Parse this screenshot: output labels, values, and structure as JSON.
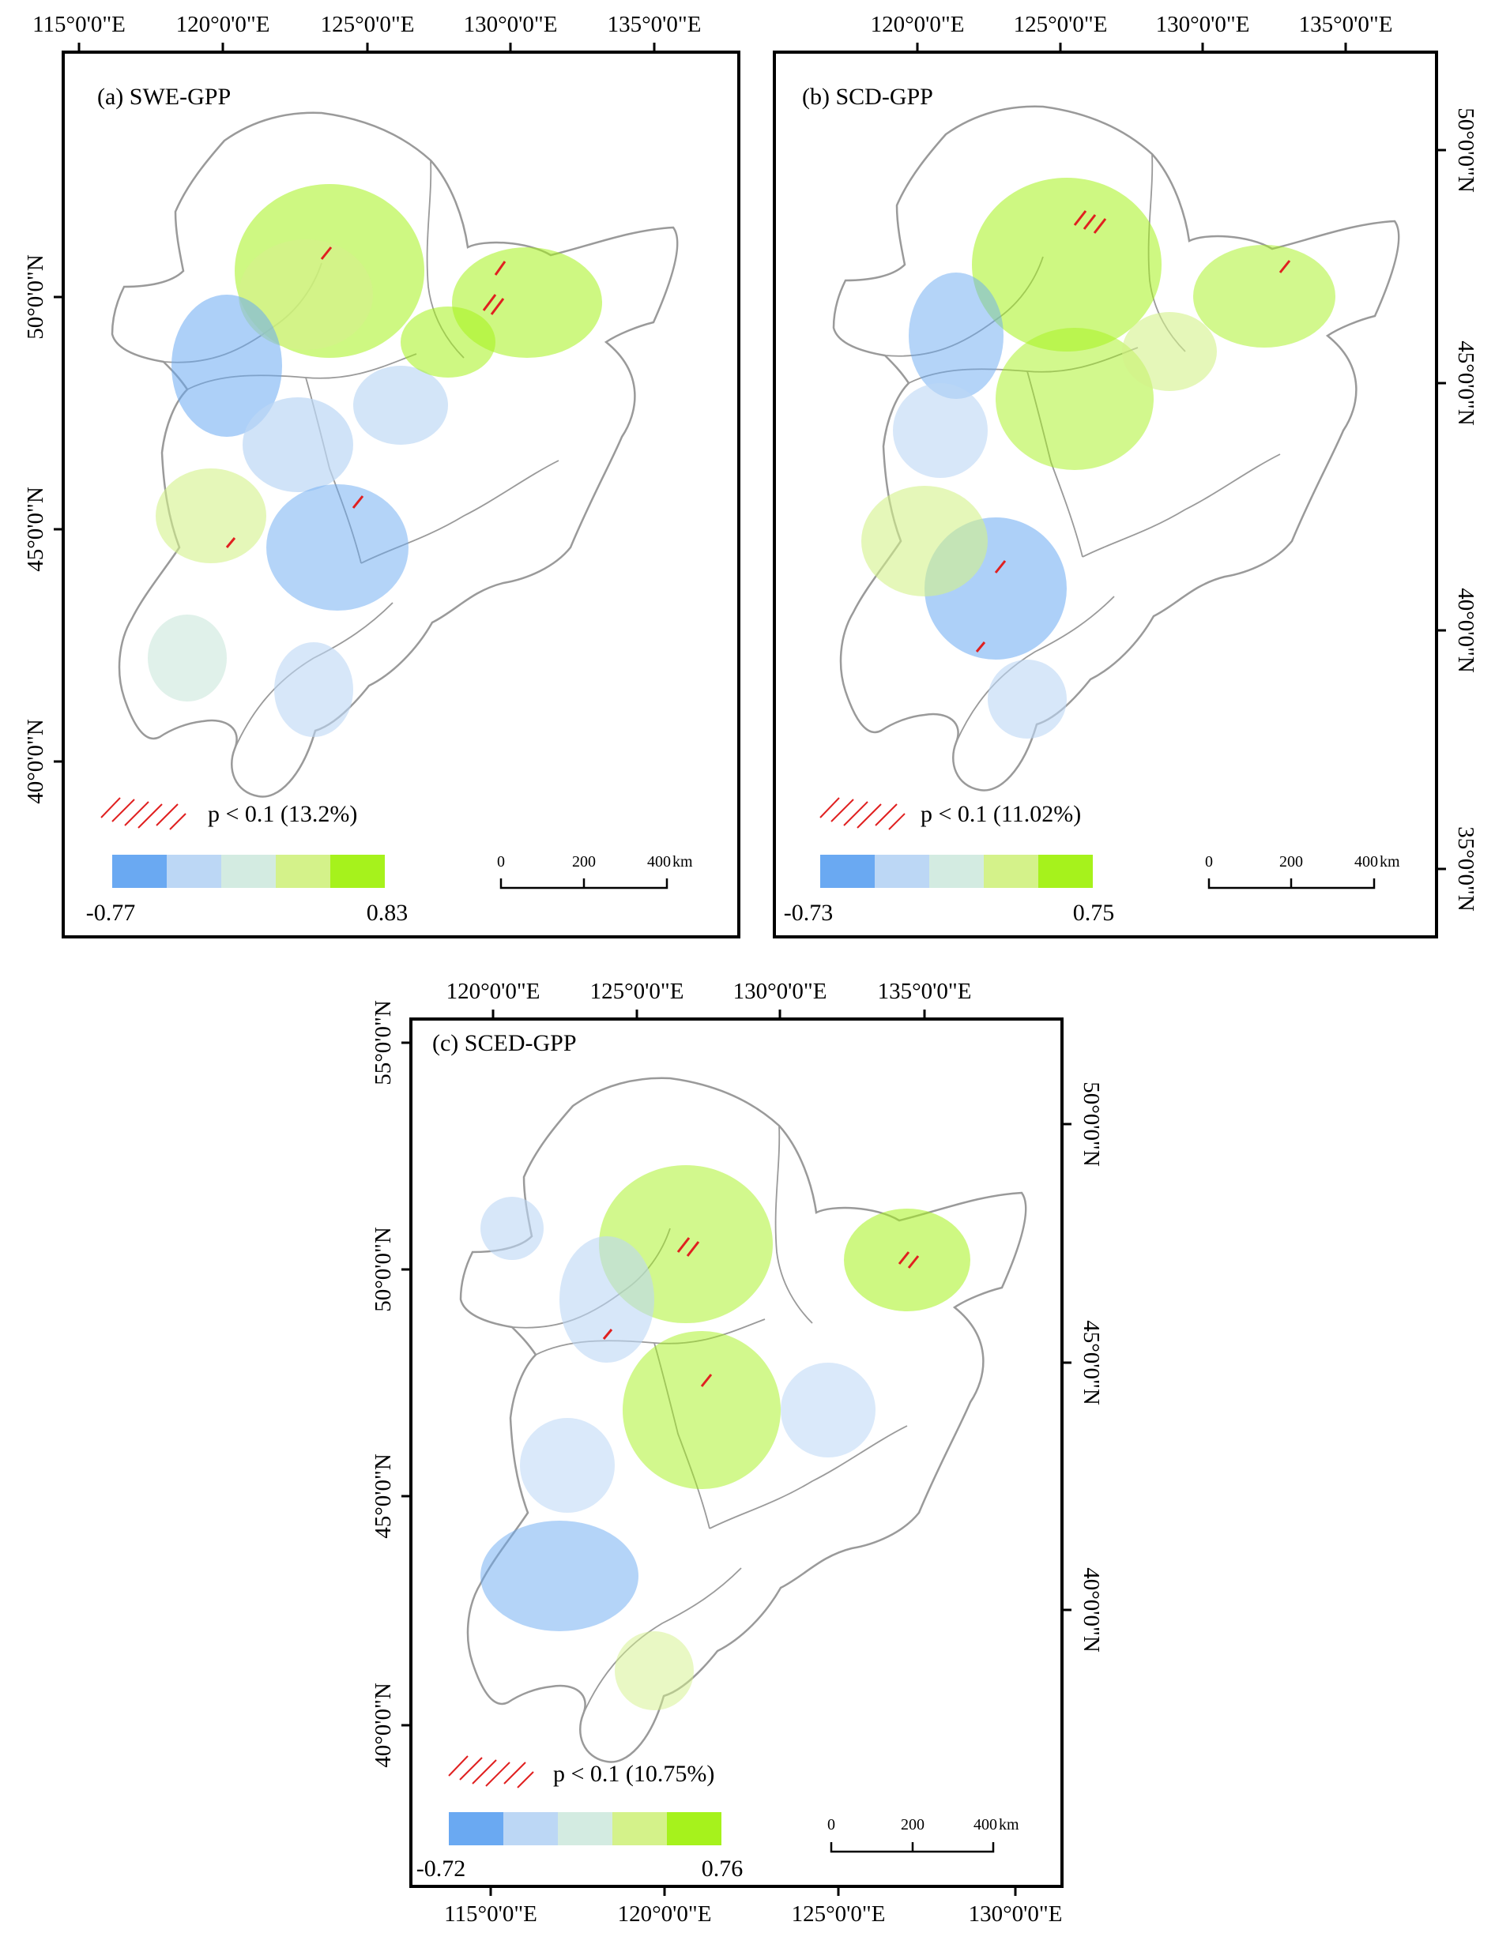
{
  "figure": {
    "panels": [
      {
        "id": "a",
        "title": "(a) SWE-GPP",
        "top_ticks": [
          "115°0'0\"E",
          "120°0'0\"E",
          "125°0'0\"E",
          "130°0'0\"E",
          "135°0'0\"E"
        ],
        "left_ticks": [
          "50°0'0\"N",
          "45°0'0\"N",
          "40°0'0\"N"
        ],
        "right_ticks": [],
        "bottom_ticks": [],
        "significance_label": "p < 0.1 (13.2%)",
        "significant_percent": 13.2,
        "colorbar": {
          "min_label": "-0.77",
          "max_label": "0.83",
          "min": -0.77,
          "max": 0.83
        },
        "scalebar": {
          "ticks": [
            "0",
            "200",
            "400"
          ],
          "unit": "km"
        }
      },
      {
        "id": "b",
        "title": "(b) SCD-GPP",
        "top_ticks": [
          "120°0'0\"E",
          "125°0'0\"E",
          "130°0'0\"E",
          "135°0'0\"E"
        ],
        "left_ticks": [],
        "right_ticks": [
          "50°0'0\"N",
          "45°0'0\"N",
          "40°0'0\"N",
          "35°0'0\"N"
        ],
        "bottom_ticks": [],
        "significance_label": "p < 0.1 (11.02%)",
        "significant_percent": 11.02,
        "colorbar": {
          "min_label": "-0.73",
          "max_label": "0.75",
          "min": -0.73,
          "max": 0.75
        },
        "scalebar": {
          "ticks": [
            "0",
            "200",
            "400"
          ],
          "unit": "km"
        }
      },
      {
        "id": "c",
        "title": "(c) SCED-GPP",
        "top_ticks": [
          "120°0'0\"E",
          "125°0'0\"E",
          "130°0'0\"E",
          "135°0'0\"E"
        ],
        "left_ticks": [
          "55°0'0\"N",
          "50°0'0\"N",
          "45°0'0\"N",
          "40°0'0\"N"
        ],
        "right_ticks": [
          "50°0'0\"N",
          "45°0'0\"N",
          "40°0'0\"N"
        ],
        "bottom_ticks": [
          "115°0'0\"E",
          "120°0'0\"E",
          "125°0'0\"E",
          "130°0'0\"E"
        ],
        "significance_label": "p < 0.1 (10.75%)",
        "significant_percent": 10.75,
        "colorbar": {
          "min_label": "-0.72",
          "max_label": "0.76",
          "min": -0.72,
          "max": 0.76
        },
        "scalebar": {
          "ticks": [
            "0",
            "200",
            "400"
          ],
          "unit": "km"
        }
      }
    ],
    "colors": {
      "class_1": "#6aa9f2",
      "class_2": "#bcd7f5",
      "class_3": "#d3ebe1",
      "class_4": "#d4f28a",
      "class_5": "#a6f21c",
      "hatch": "#e02020",
      "boundary": "#9a9a9a"
    }
  }
}
